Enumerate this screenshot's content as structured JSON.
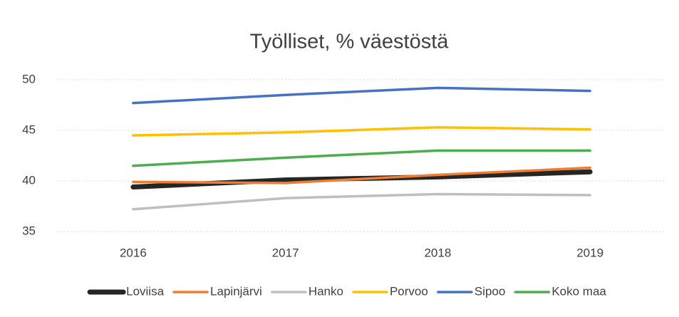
{
  "chart_data": {
    "type": "line",
    "title": "Työlliset, % väestöstä",
    "categories": [
      "2016",
      "2017",
      "2018",
      "2019"
    ],
    "series": [
      {
        "name": "Loviisa",
        "color": "#262626",
        "values": [
          39.4,
          40.1,
          40.4,
          40.9
        ]
      },
      {
        "name": "Lapinjärvi",
        "color": "#ed7d31",
        "values": [
          39.9,
          39.8,
          40.6,
          41.3
        ]
      },
      {
        "name": "Hanko",
        "color": "#bfbfbf",
        "values": [
          37.2,
          38.3,
          38.7,
          38.6
        ]
      },
      {
        "name": "Porvoo",
        "color": "#ffc000",
        "values": [
          44.5,
          44.8,
          45.3,
          45.1
        ]
      },
      {
        "name": "Sipoo",
        "color": "#4472c4",
        "values": [
          47.7,
          48.5,
          49.2,
          48.9
        ]
      },
      {
        "name": "Koko maa",
        "color": "#4cae4c",
        "values": [
          41.5,
          42.3,
          43.0,
          43.0
        ]
      }
    ],
    "ylim": [
      35,
      50
    ],
    "yticks": [
      35,
      40,
      45,
      50
    ],
    "grid": true,
    "legend": "bottom"
  }
}
